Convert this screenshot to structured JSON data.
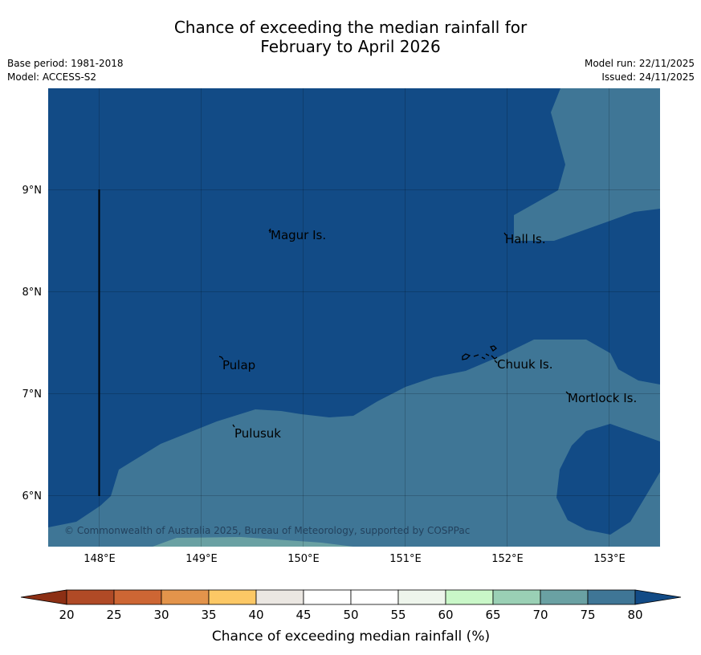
{
  "header": {
    "title_line1": "Chance of exceeding the median rainfall for",
    "title_line2": "February to April 2026",
    "base_period": "Base period: 1981-2018",
    "model": "Model: ACCESS-S2",
    "model_run": "Model run: 22/11/2025",
    "issued": "Issued: 24/11/2025"
  },
  "map": {
    "lon_labels": [
      "148°E",
      "149°E",
      "150°E",
      "151°E",
      "152°E",
      "153°E"
    ],
    "lat_labels": [
      "9°N",
      "8°N",
      "7°N",
      "6°N"
    ],
    "places": [
      "Magur Is.",
      "Hall Is.",
      "Pulap",
      "Chuuk Is.",
      "Mortlock Is.",
      "Pulusuk"
    ],
    "copyright": "© Commonwealth of Australia 2025, Bureau of Meteorology, supported by COSPPac"
  },
  "colorbar": {
    "ticks": [
      "20",
      "25",
      "30",
      "35",
      "40",
      "45",
      "50",
      "55",
      "60",
      "65",
      "70",
      "75",
      "80"
    ],
    "colors": [
      "#b04a26",
      "#cd6634",
      "#e3944b",
      "#fcc865",
      "#ebe7e2",
      "#ffffff",
      "#ffffff",
      "#eef5ec",
      "#c9f7c8",
      "#9ad0b5",
      "#6aa1a3",
      "#3f7696"
    ],
    "under_color": "#8c2f14",
    "over_color": "#124b86",
    "label": "Chance of exceeding median rainfall (%)"
  }
}
